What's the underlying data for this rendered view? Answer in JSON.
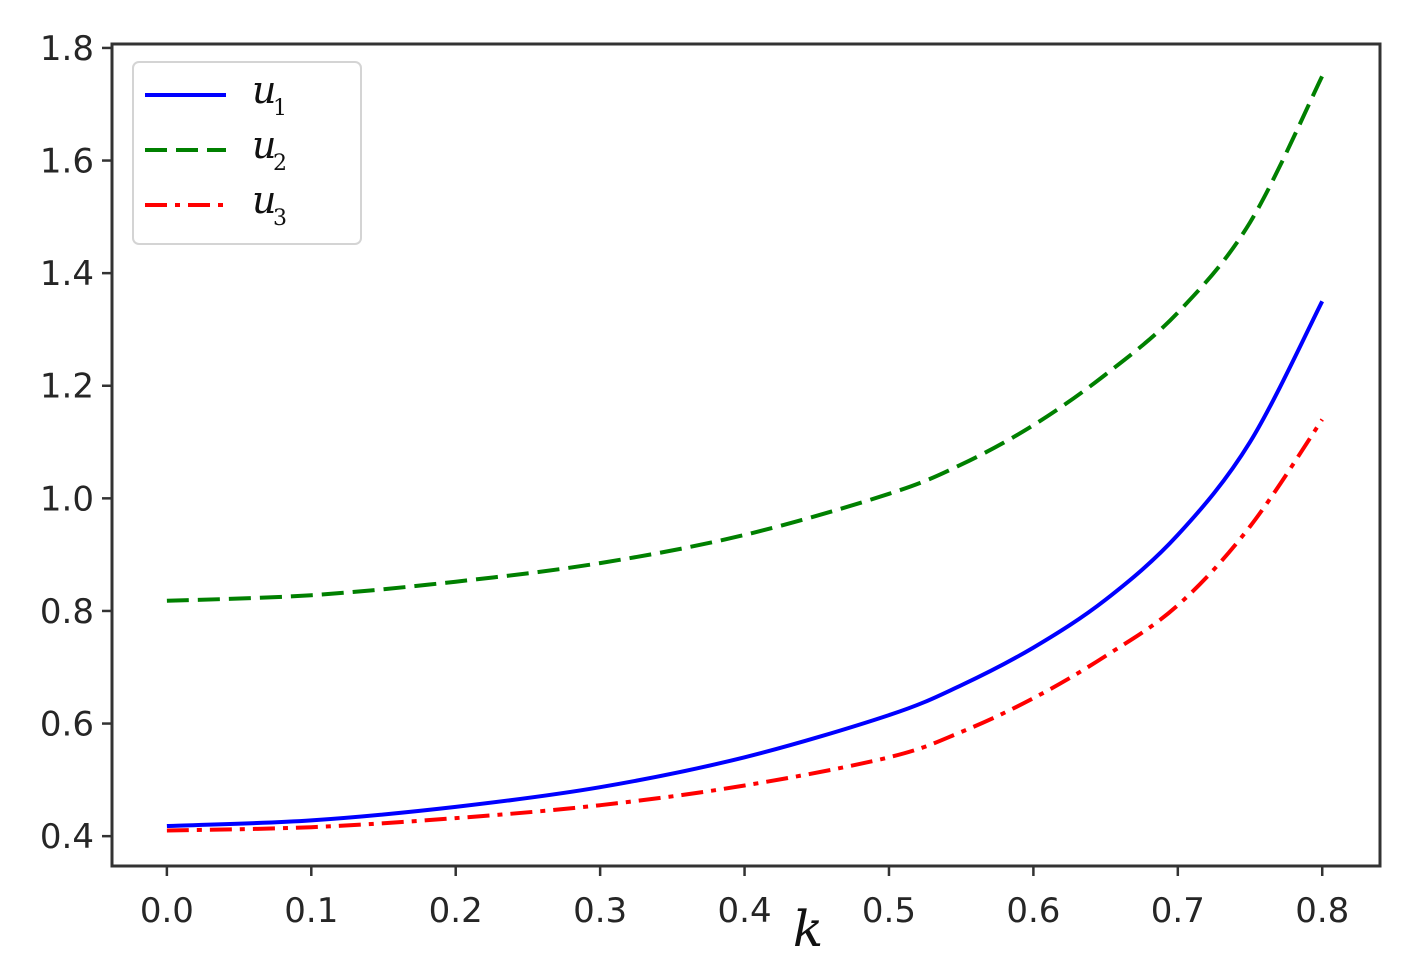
{
  "chart_data": {
    "type": "line",
    "title": "",
    "xlabel": "k",
    "ylabel": "",
    "xlim": [
      -0.038,
      0.84
    ],
    "ylim": [
      0.347,
      1.807
    ],
    "xticks": [
      0.0,
      0.1,
      0.2,
      0.3,
      0.4,
      0.5,
      0.6,
      0.7,
      0.8
    ],
    "xtick_labels": [
      "0.0",
      "0.1",
      "0.2",
      "0.3",
      "0.4",
      "0.5",
      "0.6",
      "0.7",
      "0.8"
    ],
    "yticks": [
      0.4,
      0.6,
      0.8,
      1.0,
      1.2,
      1.4,
      1.6,
      1.8
    ],
    "ytick_labels": [
      "0.4",
      "0.6",
      "0.8",
      "1.0",
      "1.2",
      "1.4",
      "1.6",
      "1.8"
    ],
    "grid": false,
    "legend_position": "top-left",
    "x": [
      0.0,
      0.1,
      0.2,
      0.3,
      0.4,
      0.5,
      0.55,
      0.6,
      0.65,
      0.7,
      0.75,
      0.8
    ],
    "series": [
      {
        "name": "u",
        "subscript": "1",
        "color": "#0000ff",
        "style": "solid",
        "values": [
          0.418,
          0.428,
          0.452,
          0.487,
          0.54,
          0.615,
          0.668,
          0.735,
          0.82,
          0.935,
          1.1,
          1.35
        ]
      },
      {
        "name": "u",
        "subscript": "2",
        "color": "#008000",
        "style": "dashed",
        "values": [
          0.818,
          0.828,
          0.852,
          0.885,
          0.935,
          1.008,
          1.06,
          1.13,
          1.22,
          1.33,
          1.49,
          1.75
        ]
      },
      {
        "name": "u",
        "subscript": "3",
        "color": "#ff0000",
        "style": "dashdot",
        "values": [
          0.41,
          0.416,
          0.432,
          0.455,
          0.49,
          0.54,
          0.585,
          0.645,
          0.72,
          0.81,
          0.95,
          1.14
        ]
      }
    ]
  }
}
